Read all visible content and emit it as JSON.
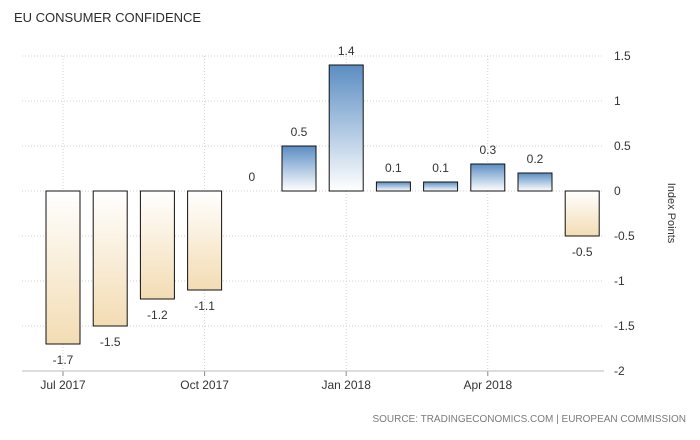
{
  "title": "EU CONSUMER CONFIDENCE",
  "source": "SOURCE: TRADINGECONOMICS.COM | EUROPEAN COMMISSION",
  "colors": {
    "positive_top": "#5b8dc3",
    "positive_bottom": "#ffffff",
    "negative_top": "#ffffff",
    "negative_bottom": "#f3dcb3",
    "bar_stroke": "#111111",
    "grid": "#d2d2d2",
    "text": "#333333"
  },
  "chart_data": {
    "type": "bar",
    "title": "EU CONSUMER CONFIDENCE",
    "ylabel": "Index Points",
    "xlabel": "",
    "ylim": [
      -2,
      1.5
    ],
    "yticks": [
      1.5,
      1,
      0.5,
      0,
      -0.5,
      -1,
      -1.5,
      -2
    ],
    "ytick_labels": [
      "1.5",
      "1",
      "0.5",
      "0",
      "-0.5",
      "-1",
      "-1.5",
      "-2"
    ],
    "grid": true,
    "y_axis_side": "right",
    "categories": [
      "2017-07",
      "2017-08",
      "2017-09",
      "2017-10",
      "2017-11",
      "2017-12",
      "2018-01",
      "2018-02",
      "2018-03",
      "2018-04",
      "2018-05",
      "2018-06"
    ],
    "values": [
      -1.7,
      -1.5,
      -1.2,
      -1.1,
      0,
      0.5,
      1.4,
      0.1,
      0.1,
      0.3,
      0.2,
      -0.5
    ],
    "value_labels": [
      "-1.7",
      "-1.5",
      "-1.2",
      "-1.1",
      "0",
      "0.5",
      "1.4",
      "0.1",
      "0.1",
      "0.3",
      "0.2",
      "-0.5"
    ],
    "xticks": [
      {
        "index": 0,
        "label": "Jul 2017"
      },
      {
        "index": 3,
        "label": "Oct 2017"
      },
      {
        "index": 6,
        "label": "Jan 2018"
      },
      {
        "index": 9,
        "label": "Apr 2018"
      }
    ]
  }
}
